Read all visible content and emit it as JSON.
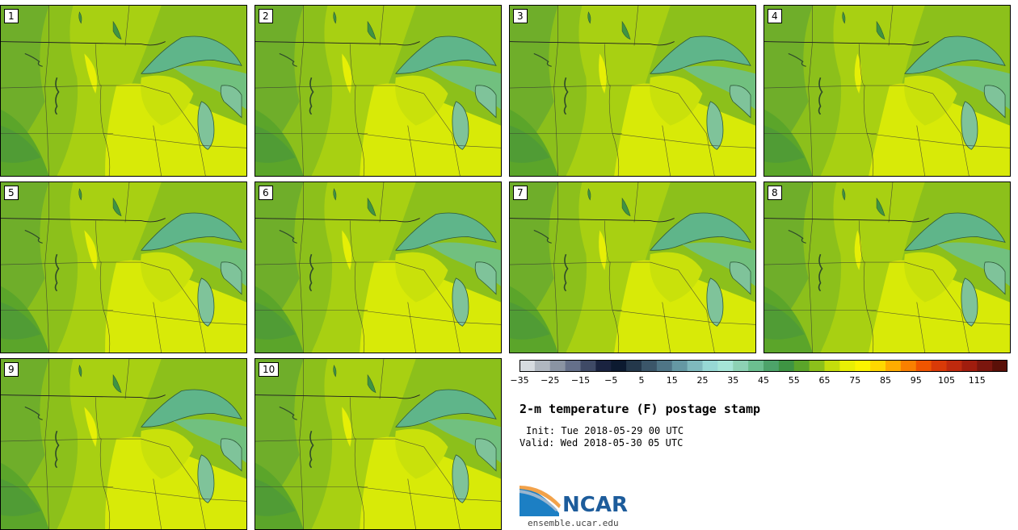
{
  "panels": [
    {
      "label": "1"
    },
    {
      "label": "2"
    },
    {
      "label": "3"
    },
    {
      "label": "4"
    },
    {
      "label": "5"
    },
    {
      "label": "6"
    },
    {
      "label": "7"
    },
    {
      "label": "8"
    },
    {
      "label": "9"
    },
    {
      "label": "10"
    }
  ],
  "legend": {
    "colors": [
      "#d6dbe0",
      "#b0b7c0",
      "#8a94a3",
      "#65708a",
      "#3f4a66",
      "#1a2340",
      "#0c1a30",
      "#24384b",
      "#3b5669",
      "#4f7586",
      "#6598a3",
      "#7fb9bd",
      "#97d8d4",
      "#a6e6d7",
      "#8dd2b4",
      "#6cbf90",
      "#4da36a",
      "#3e9443",
      "#5ba52a",
      "#8cc01b",
      "#c4dd0c",
      "#e8ef05",
      "#fbf400",
      "#ffd800",
      "#ffac00",
      "#f98000",
      "#ef5500",
      "#d93a08",
      "#bf2a0e",
      "#a01d0e",
      "#7b160e",
      "#5a1008"
    ],
    "tick_labels": [
      "−35",
      "−25",
      "−15",
      "−5",
      "5",
      "15",
      "25",
      "35",
      "45",
      "55",
      "65",
      "75",
      "85",
      "95",
      "105",
      "115"
    ]
  },
  "info": {
    "title": "2-m temperature (F) postage stamp",
    "init": "Init: Tue 2018-05-29 00 UTC",
    "valid": "Valid: Wed 2018-05-30 05 UTC"
  },
  "logo": {
    "name": "NCAR",
    "url": "ensemble.ucar.edu"
  }
}
